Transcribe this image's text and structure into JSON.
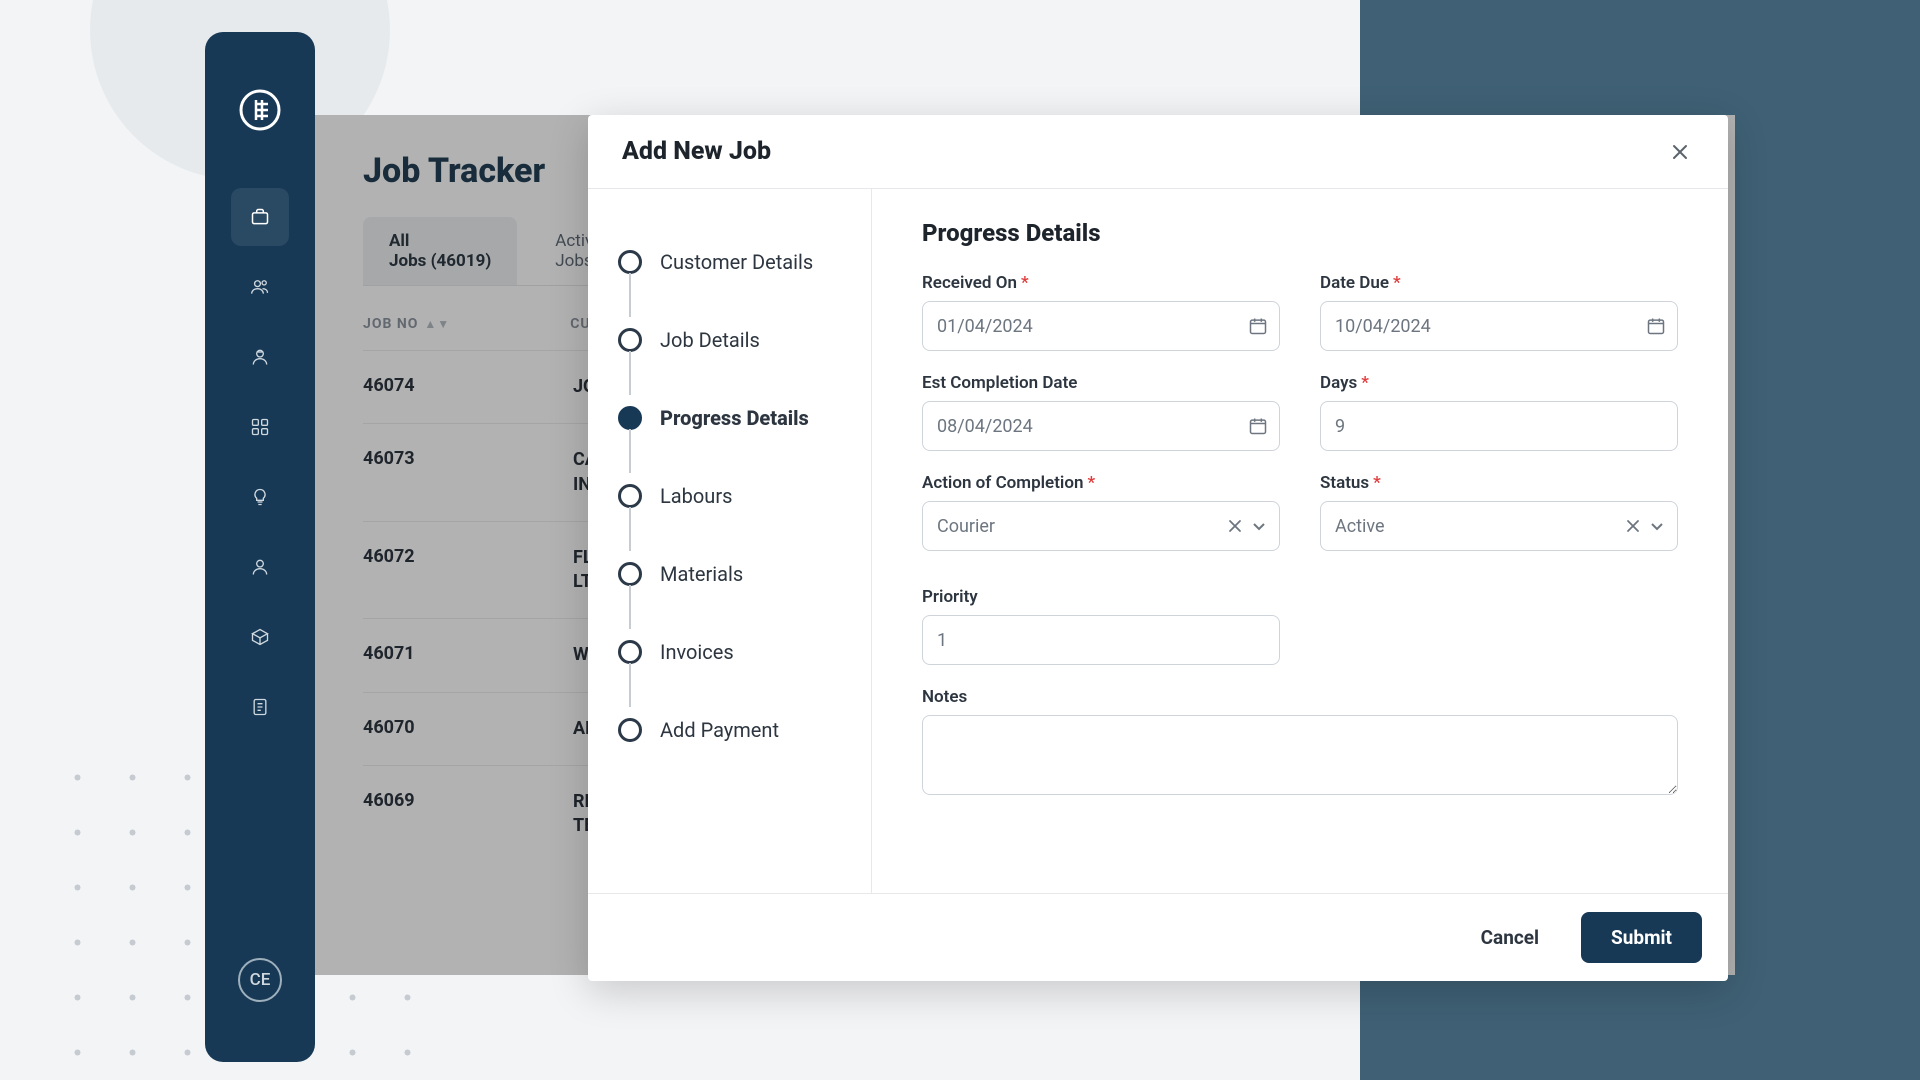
{
  "colors": {
    "sidebar_bg": "#183955",
    "accent_panel": "#3f6075",
    "page_bg": "#f3f4f6",
    "primary_btn": "#183955",
    "text_dark": "#1d242b",
    "required": "#e03b3b"
  },
  "sidebar": {
    "avatar_initials": "CE",
    "items": [
      {
        "name": "briefcase-icon",
        "active": true
      },
      {
        "name": "people-icon"
      },
      {
        "name": "worker-icon"
      },
      {
        "name": "apps-icon"
      },
      {
        "name": "idea-icon"
      },
      {
        "name": "person-icon"
      },
      {
        "name": "package-icon"
      },
      {
        "name": "document-icon"
      }
    ]
  },
  "page": {
    "title": "Job Tracker",
    "tabs": {
      "all": {
        "line1": "All",
        "line2": "Jobs (46019)"
      },
      "active": {
        "line1": "Active",
        "line2": "Jobs"
      }
    },
    "columns": {
      "jobno": "JOB NO",
      "customer": "CUSTOMER NAME"
    },
    "rows": [
      {
        "jobno": "46074",
        "customer": "JOHN"
      },
      {
        "jobno": "46073",
        "customer": "CASH MINING INDUSTRIES WHOLE"
      },
      {
        "jobno": "46072",
        "customer": "FLUID MANAGEMENT PTY LTD"
      },
      {
        "jobno": "46071",
        "customer": "WILSON"
      },
      {
        "jobno": "46070",
        "customer": "AFFORDABLE LIVING"
      },
      {
        "jobno": "46069",
        "customer": "REMOTE CONTROL TECHNOLOGIES"
      }
    ]
  },
  "modal": {
    "title": "Add New Job",
    "steps": [
      {
        "label": "Customer Details"
      },
      {
        "label": "Job Details"
      },
      {
        "label": "Progress Details",
        "active": true
      },
      {
        "label": "Labours"
      },
      {
        "label": "Materials"
      },
      {
        "label": "Invoices"
      },
      {
        "label": "Add Payment"
      }
    ],
    "form": {
      "heading": "Progress Details",
      "received_on": {
        "label": "Received On",
        "value": "01/04/2024",
        "required": true
      },
      "date_due": {
        "label": "Date Due",
        "value": "10/04/2024",
        "required": true
      },
      "est_completion": {
        "label": "Est Completion Date",
        "value": "08/04/2024",
        "required": false
      },
      "days": {
        "label": "Days",
        "value": "9",
        "required": true
      },
      "action": {
        "label": "Action of Completion",
        "value": "Courier",
        "required": true
      },
      "status": {
        "label": "Status",
        "value": "Active",
        "required": true
      },
      "priority": {
        "label": "Priority",
        "value": "1"
      },
      "notes": {
        "label": "Notes",
        "value": ""
      }
    },
    "footer": {
      "cancel": "Cancel",
      "submit": "Submit"
    }
  }
}
